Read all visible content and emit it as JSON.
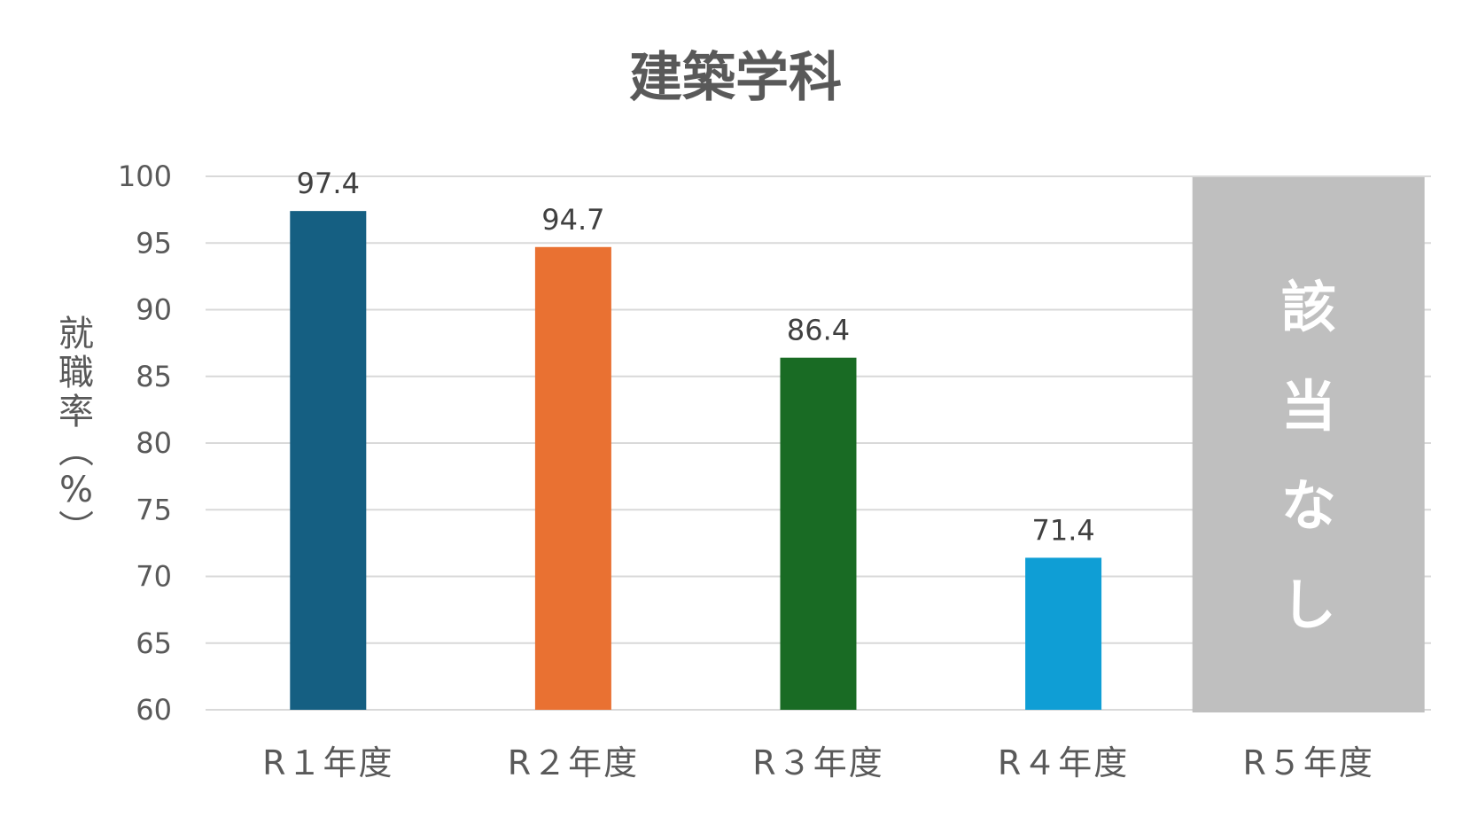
{
  "chart_data": {
    "type": "bar",
    "title": "建築学科",
    "ylabel": "就職率（%）",
    "xlabel": "",
    "categories": [
      "R１年度",
      "R２年度",
      "R３年度",
      "R４年度",
      "R５年度"
    ],
    "values": [
      97.4,
      94.7,
      86.4,
      71.4,
      null
    ],
    "data_labels": [
      "97.4",
      "94.7",
      "86.4",
      "71.4",
      ""
    ],
    "colors": [
      "#155f82",
      "#e97132",
      "#196b24",
      "#0f9ed5",
      "#bfbfbf"
    ],
    "ylim": [
      60,
      100
    ],
    "yticks": [
      "60",
      "65",
      "70",
      "75",
      "80",
      "85",
      "90",
      "95",
      "100"
    ],
    "grid": true,
    "legend": "none",
    "not_applicable": {
      "category_index": 4,
      "text": "該当なし"
    }
  }
}
